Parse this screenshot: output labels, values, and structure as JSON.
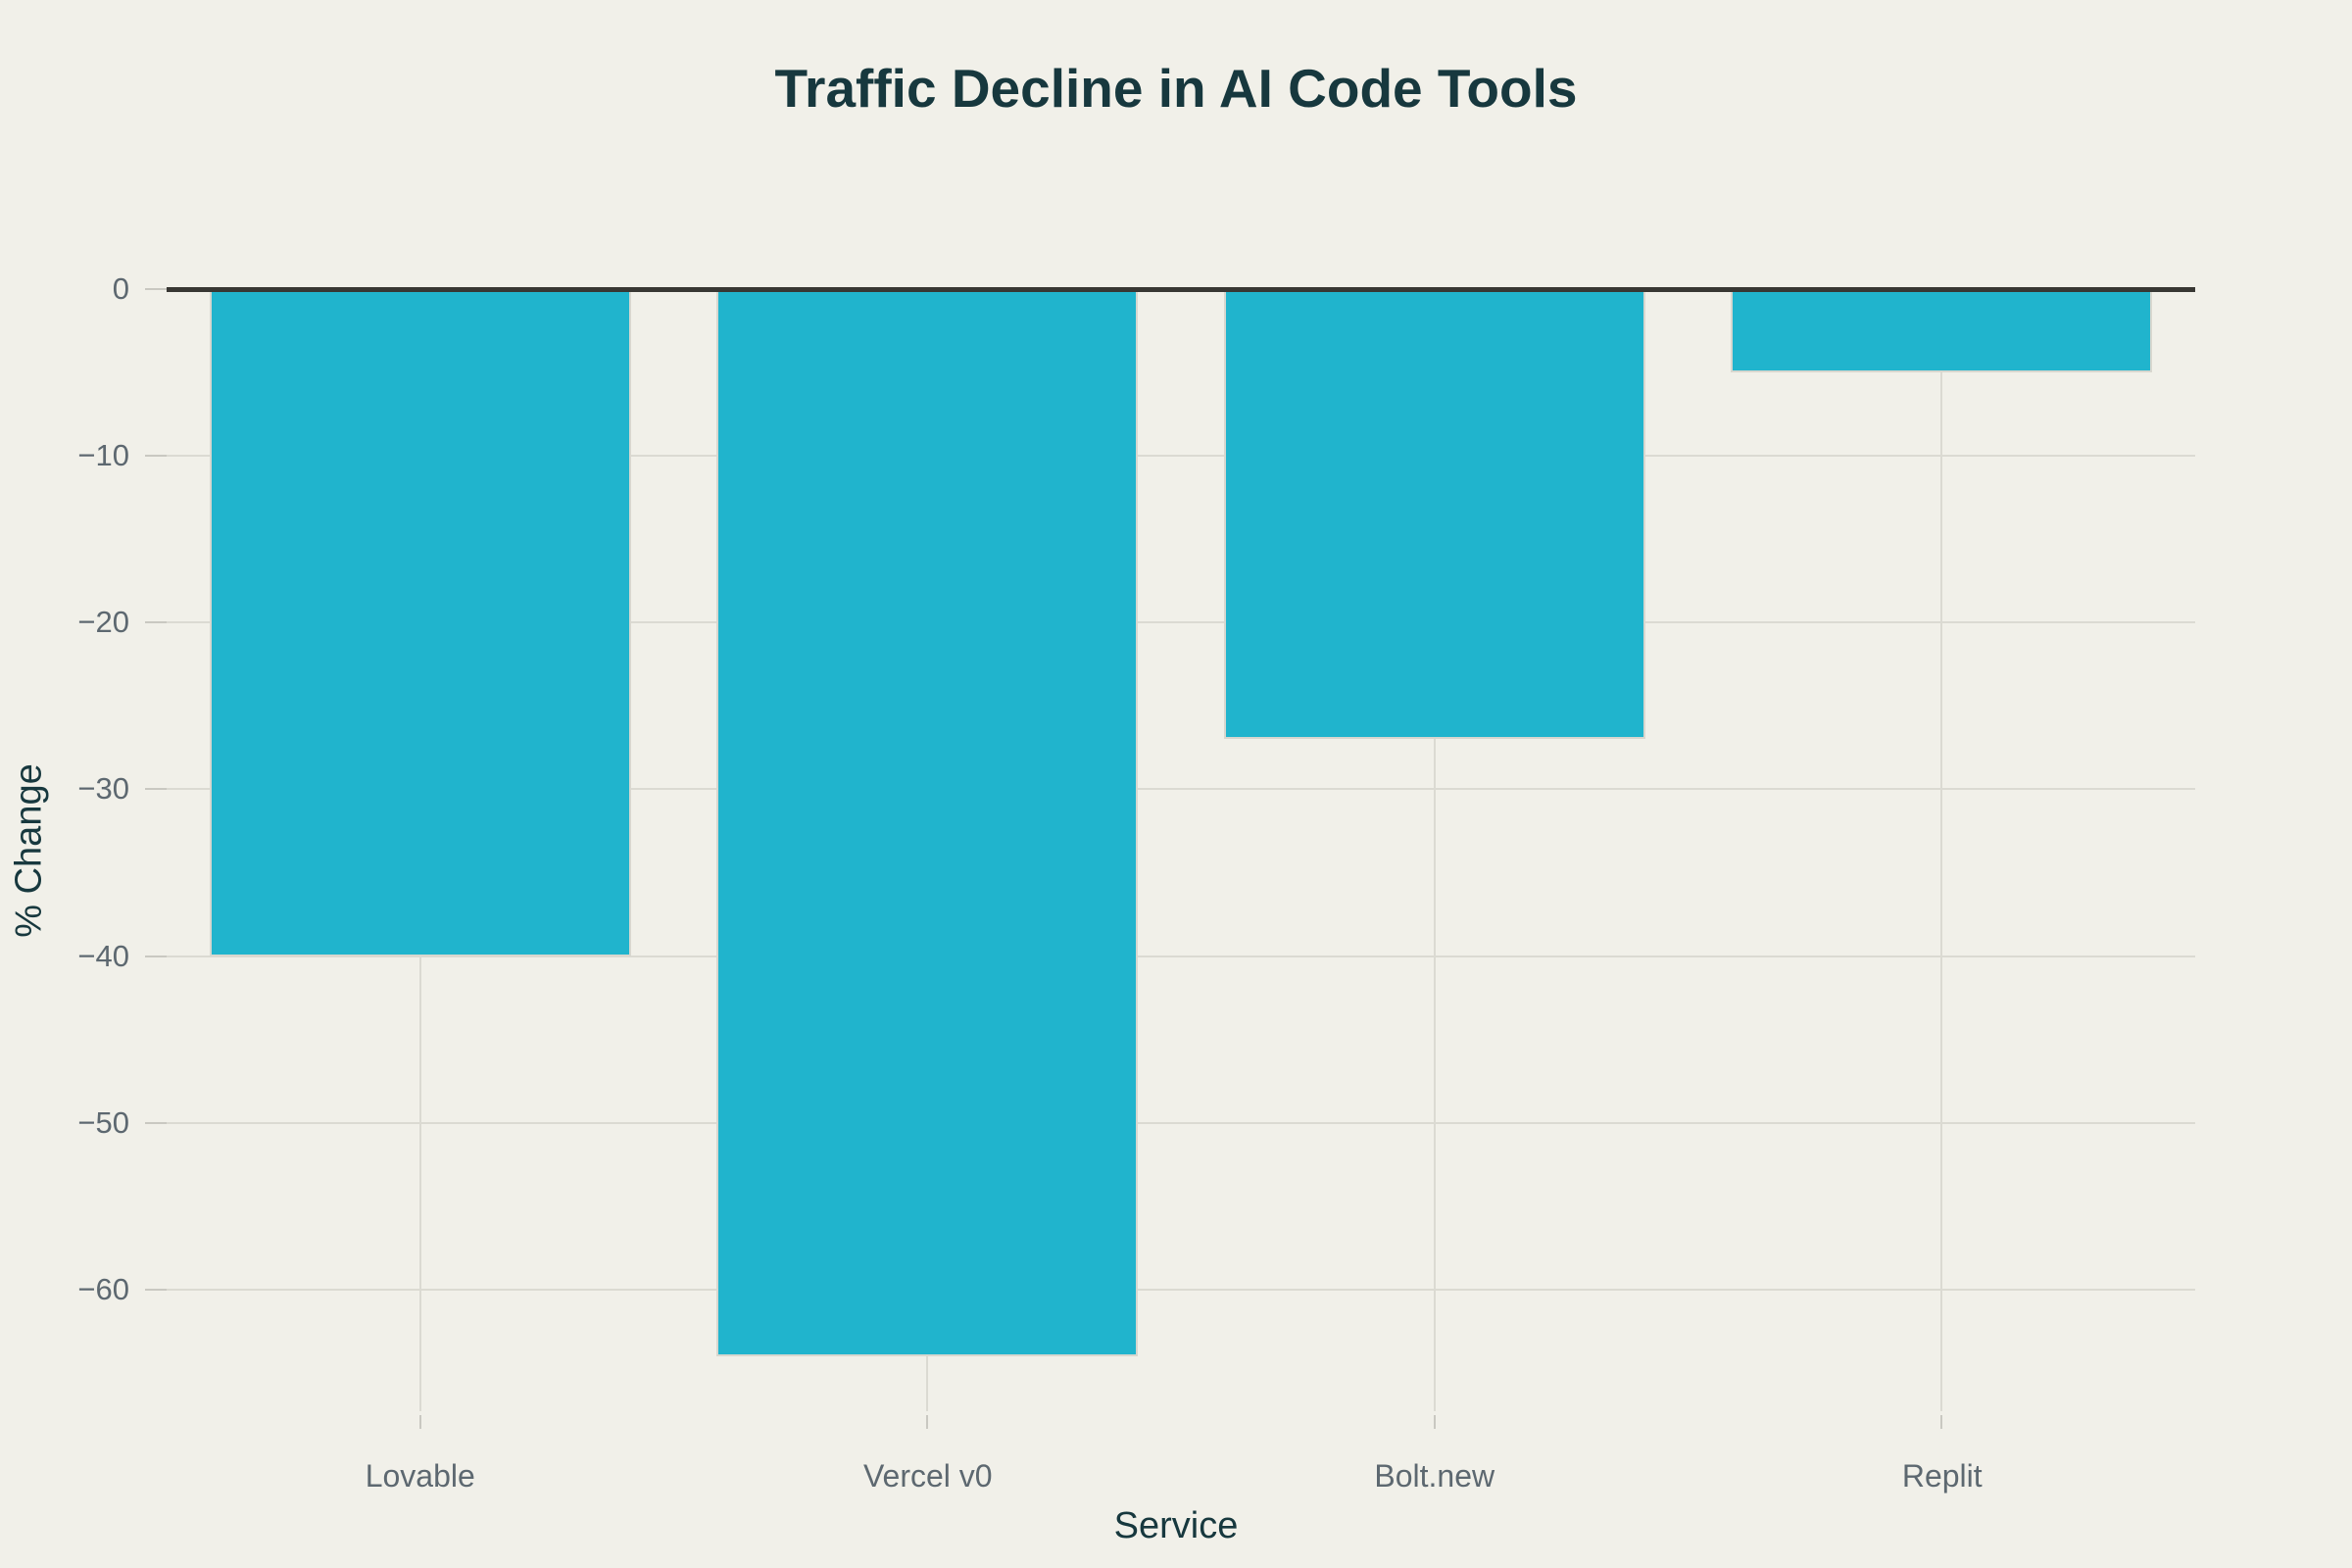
{
  "chart_data": {
    "type": "bar",
    "title": "Traffic Decline in AI Code Tools",
    "xlabel": "Service",
    "ylabel": "% Change",
    "categories": [
      "Lovable",
      "Vercel v0",
      "Bolt.new",
      "Replit"
    ],
    "values": [
      -40,
      -64,
      -27,
      -5
    ],
    "yticks": [
      0,
      -10,
      -20,
      -30,
      -40,
      -50,
      -60
    ],
    "ylim": [
      -67.3,
      0
    ],
    "grid": true,
    "legend": false,
    "orientation": "vertical",
    "colors": {
      "background": "#f1f0e9",
      "bar": "#20b4cd",
      "bar_edge": "#d8d7cf",
      "title": "#17383e",
      "axis_title": "#17383e",
      "tick_label": "#5d6870",
      "zero_line": "#383733",
      "gridline": "#dbdad2",
      "tick_mark": "#c9c8c1"
    }
  }
}
